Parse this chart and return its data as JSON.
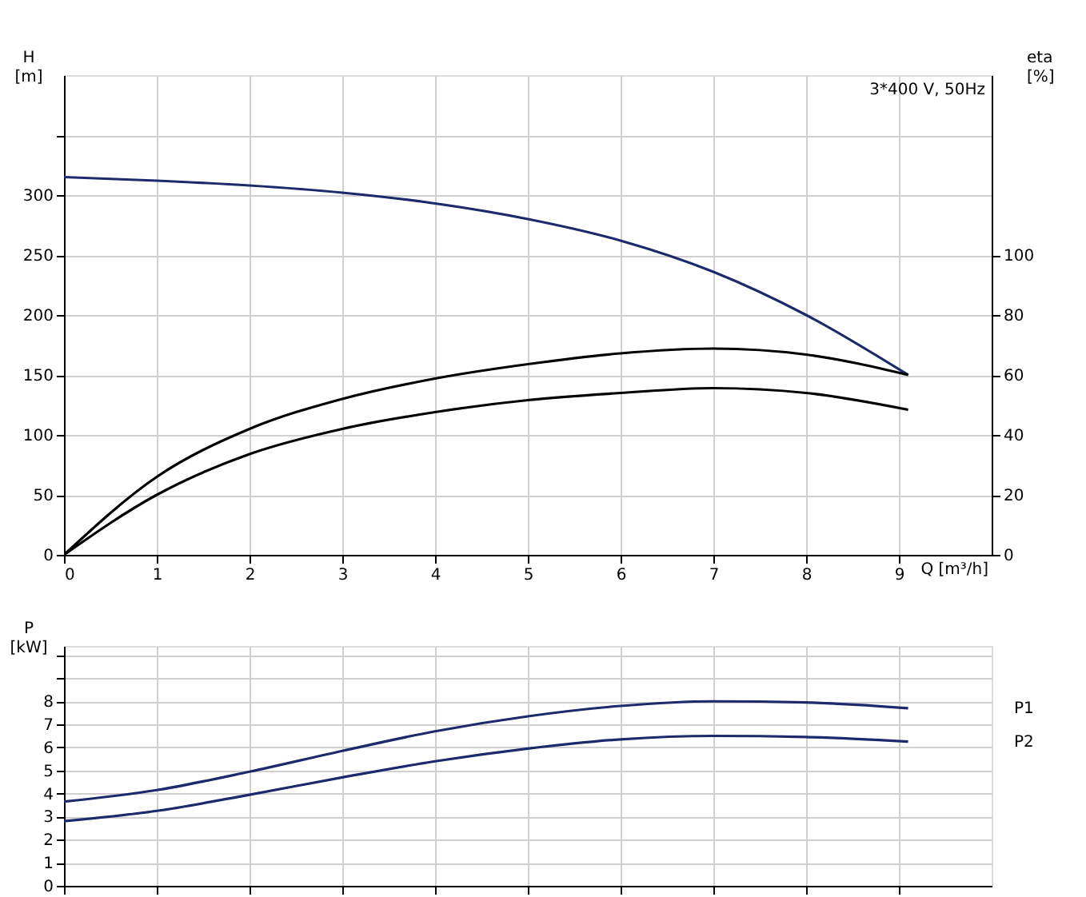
{
  "chart_data": [
    {
      "type": "line",
      "xlabel": "Q [m³/h]",
      "ylabel": "H\n[m]",
      "y2label": "eta\n[%]",
      "annotations": [
        "3*400 V, 50Hz"
      ],
      "x": [
        0,
        1,
        2,
        3,
        4,
        5,
        6,
        7,
        8,
        9.1
      ],
      "xlim": [
        0,
        10
      ],
      "xticks": [
        0,
        1,
        2,
        3,
        4,
        5,
        6,
        7,
        8,
        9
      ],
      "ylim": [
        0,
        400
      ],
      "yticks": [
        0,
        50,
        100,
        150,
        200,
        250,
        300,
        {
          "value": 350,
          "label": null
        }
      ],
      "y2lim": [
        0,
        160
      ],
      "y2ticks": [
        0,
        20,
        40,
        60,
        80,
        100
      ],
      "grid": true,
      "series": [
        {
          "color": "#1b2a6b",
          "values": [
            315,
            312,
            308,
            302,
            293,
            280,
            262,
            236,
            200,
            150
          ]
        },
        {
          "color": "#000000",
          "axis": "y2",
          "values": [
            0,
            26,
            42,
            52,
            58.8,
            63.6,
            67.2,
            68.8,
            66.8,
            60
          ]
        },
        {
          "color": "#000000",
          "axis": "y2",
          "values": [
            0,
            20,
            33.6,
            42,
            47.6,
            51.6,
            54,
            55.6,
            54,
            48.4
          ]
        }
      ]
    },
    {
      "type": "line",
      "ylabel": "P\n[kW]",
      "tick_labels": "y",
      "x": [
        0,
        1,
        2,
        3,
        4,
        5,
        6,
        7,
        8,
        9.1
      ],
      "xlim": [
        0,
        10
      ],
      "xticks": [
        0,
        1,
        2,
        3,
        4,
        5,
        6,
        7,
        8,
        9
      ],
      "ylim": [
        0,
        10.4
      ],
      "yticks": [
        0,
        1,
        2,
        3,
        4,
        5,
        6,
        7,
        8,
        {
          "value": 9,
          "label": null
        },
        {
          "value": 10,
          "label": null
        }
      ],
      "grid": true,
      "series": [
        {
          "name": "P1",
          "color": "#1b2a6b",
          "values": [
            3.65,
            4.15,
            4.95,
            5.85,
            6.7,
            7.35,
            7.8,
            8.0,
            7.95,
            7.7
          ]
        },
        {
          "name": "P2",
          "color": "#1b2a6b",
          "values": [
            2.8,
            3.25,
            3.95,
            4.7,
            5.4,
            5.95,
            6.35,
            6.5,
            6.45,
            6.25
          ]
        }
      ]
    }
  ]
}
